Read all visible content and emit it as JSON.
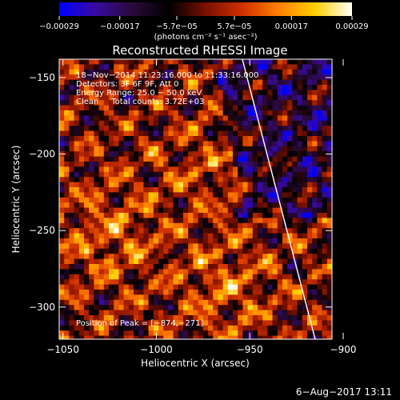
{
  "chart_data": {
    "type": "heatmap",
    "title": "Reconstructed RHESSI Image",
    "xlabel": "Heliocentric X (arcsec)",
    "ylabel": "Heliocentric Y (arcsec)",
    "xlim": [
      -1052,
      -906
    ],
    "ylim": [
      -321,
      -138
    ],
    "xticks": [
      -1050,
      -1000,
      -950,
      -900
    ],
    "xtick_labels": [
      "−1050",
      "−1000",
      "−950",
      "−900"
    ],
    "yticks": [
      -150,
      -200,
      -250,
      -300
    ],
    "yticks_labels": [
      "−150",
      "−200",
      "−250",
      "−300"
    ],
    "colorbar": {
      "unit": "(photons cm⁻² s⁻¹ asec⁻²)",
      "ticks": [
        -0.00029,
        -0.00017,
        -5.7e-05,
        5.7e-05,
        0.00017,
        0.00029
      ],
      "tick_labels": [
        "−0.00029",
        "−0.00017",
        "−5.7e−05",
        "5.7e−05",
        "0.00017",
        "0.00029"
      ],
      "colors": [
        "#0000ff",
        "#3a0aa0",
        "#2a0a3a",
        "#000000",
        "#7a1000",
        "#d03000",
        "#ff8000",
        "#ffd000",
        "#ffffff"
      ]
    },
    "annotations": [
      "18−Nov−2014 11:23:16.000 to 11:33:16.000",
      "Detectors: 3F 6F 9F, Att 0",
      "Energy Range: 25.0 − 50.0 keV",
      "Clean     Total counts: 3.72E+03"
    ],
    "peak_label": "Position of Peak = [−874,−271]",
    "limb_line": {
      "x": [
        -954,
        -915
      ],
      "y": [
        -138,
        -321
      ],
      "color": "#ffffff"
    },
    "grid": false
  },
  "footer": {
    "date": "6−Aug−2017 13:11"
  }
}
